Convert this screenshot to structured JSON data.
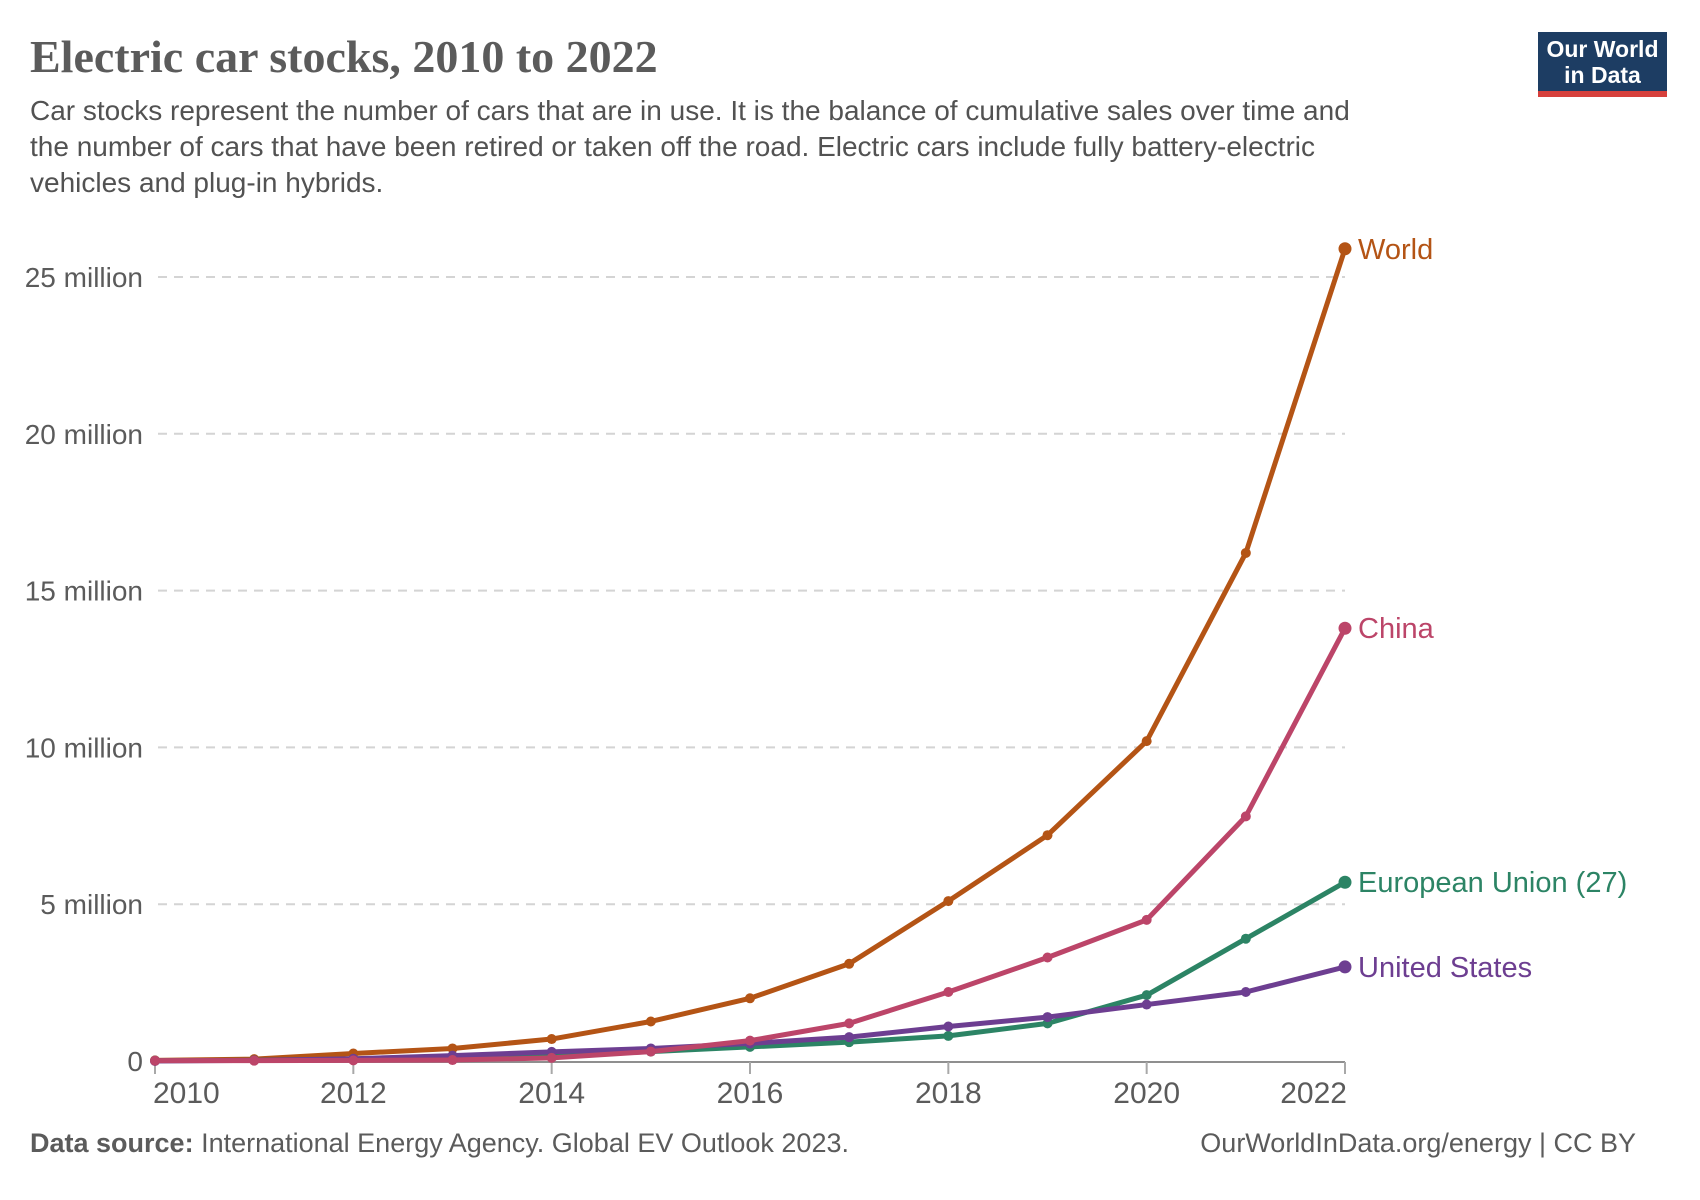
{
  "header": {
    "title": "Electric car stocks, 2010 to 2022",
    "subtitle": "Car stocks represent the number of cars that are in use. It is the balance of cumulative sales over time and the number of cars that have been retired or taken off the road. Electric cars include fully battery-electric vehicles and plug-in hybrids."
  },
  "logo": {
    "line1": "Our World",
    "line2": "in Data",
    "bg_color": "#1d3d63",
    "bar_color": "#d6403c"
  },
  "footer": {
    "source_label": "Data source:",
    "source_text": " International Energy Agency. Global EV Outlook 2023.",
    "credit": "OurWorldInData.org/energy | CC BY"
  },
  "chart_data": {
    "type": "line",
    "title": "Electric car stocks, 2010 to 2022",
    "xlabel": "",
    "ylabel": "",
    "x": [
      2010,
      2011,
      2012,
      2013,
      2014,
      2015,
      2016,
      2017,
      2018,
      2019,
      2020,
      2021,
      2022
    ],
    "x_tick_years": [
      2010,
      2012,
      2014,
      2016,
      2018,
      2020,
      2022
    ],
    "y_ticks": [
      {
        "value": 0,
        "label": "0"
      },
      {
        "value": 5,
        "label": "5 million"
      },
      {
        "value": 10,
        "label": "10 million"
      },
      {
        "value": 15,
        "label": "15 million"
      },
      {
        "value": 20,
        "label": "20 million"
      },
      {
        "value": 25,
        "label": "25 million"
      }
    ],
    "xlim": [
      2010,
      2022
    ],
    "ylim": [
      0,
      26.5
    ],
    "grid": "horizontal-dashed",
    "legend_position": "line-end-labels",
    "series": [
      {
        "name": "World",
        "color": "#b45415",
        "values": [
          0.02,
          0.06,
          0.24,
          0.4,
          0.7,
          1.26,
          2.0,
          3.1,
          5.1,
          7.2,
          10.2,
          16.2,
          25.9
        ]
      },
      {
        "name": "European Union (27)",
        "color": "#2c8465",
        "values": [
          0.01,
          0.02,
          0.05,
          0.1,
          0.18,
          0.3,
          0.45,
          0.6,
          0.8,
          1.2,
          2.1,
          3.9,
          5.7
        ]
      },
      {
        "name": "United States",
        "color": "#6d3e91",
        "values": [
          0.0,
          0.02,
          0.07,
          0.17,
          0.29,
          0.4,
          0.56,
          0.76,
          1.1,
          1.4,
          1.8,
          2.2,
          3.0
        ]
      },
      {
        "name": "China",
        "color": "#bc4569",
        "values": [
          0.01,
          0.01,
          0.02,
          0.03,
          0.1,
          0.3,
          0.65,
          1.2,
          2.2,
          3.3,
          4.5,
          7.8,
          13.8
        ]
      }
    ]
  }
}
